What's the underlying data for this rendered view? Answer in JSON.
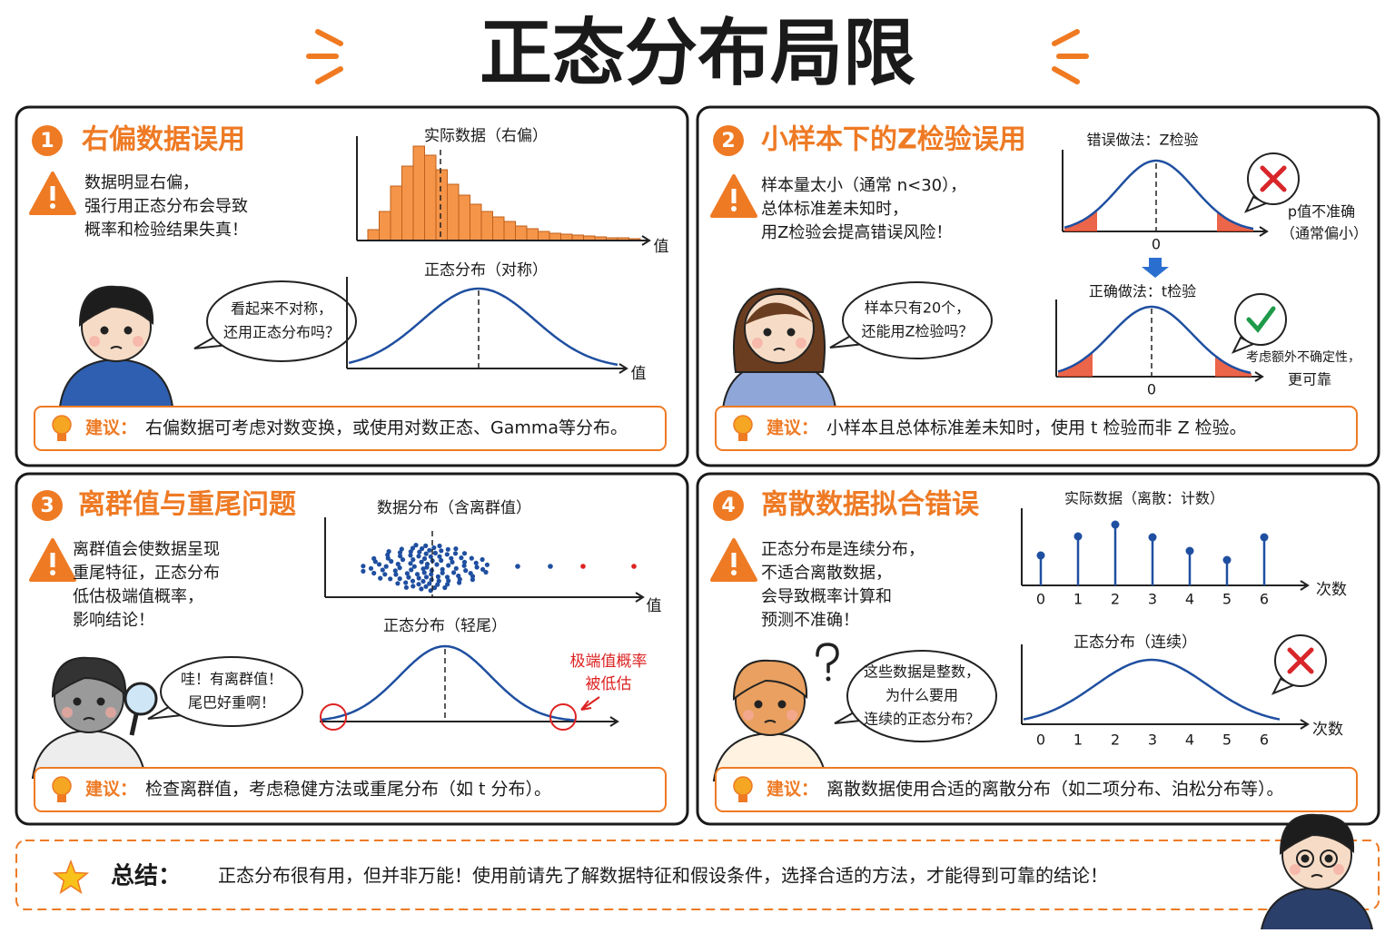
{
  "title": "正态分布局限",
  "panels": [
    {
      "number": "1",
      "heading": "右偏数据误用",
      "warning": [
        "数据明显右偏，",
        "强行用正态分布会导致",
        "概率和检验结果失真！"
      ],
      "bubble": [
        "看起来不对称，",
        "还用正态分布吗？"
      ],
      "charts": [
        {
          "title": "实际数据（右偏）",
          "x_label": "值"
        },
        {
          "title": "正态分布（对称）",
          "x_label": "值"
        }
      ],
      "tip_label": "建议：",
      "tip": "右偏数据可考虑对数变换，或使用对数正态、Gamma等分布。"
    },
    {
      "number": "2",
      "heading": "小样本下的Z检验误用",
      "warning": [
        "样本量太小（通常 n<30），",
        "总体标准差未知时，",
        "用Z检验会提高错误风险！"
      ],
      "bubble": [
        "样本只有20个，",
        "还能用Z检验吗？"
      ],
      "charts": [
        {
          "title": "错误做法：Z检验",
          "tick": "0",
          "note": [
            "p值不准确",
            "（通常偏小）"
          ]
        },
        {
          "title": "正确做法：t检验",
          "tick": "0",
          "note": [
            "考虑额外不确定性，",
            "更可靠"
          ]
        }
      ],
      "tip_label": "建议：",
      "tip": "小样本且总体标准差未知时，使用 t 检验而非 Z 检验。"
    },
    {
      "number": "3",
      "heading": "离群值与重尾问题",
      "warning": [
        "离群值会使数据呈现",
        "重尾特征，正态分布",
        "低估极端值概率，",
        "影响结论！"
      ],
      "bubble": [
        "哇！有离群值！",
        "尾巴好重啊！"
      ],
      "charts": [
        {
          "title": "数据分布（含离群值）",
          "x_label": "值"
        },
        {
          "title": "正态分布（轻尾）",
          "note": [
            "极端值概率",
            "被低估"
          ]
        }
      ],
      "tip_label": "建议：",
      "tip": "检查离群值，考虑稳健方法或重尾分布（如 t 分布）。"
    },
    {
      "number": "4",
      "heading": "离散数据拟合错误",
      "warning": [
        "正态分布是连续分布，",
        "不适合离散数据，",
        "会导致概率计算和",
        "预测不准确！"
      ],
      "bubble": [
        "这些数据是整数，",
        "为什么要用",
        "连续的正态分布？"
      ],
      "charts": [
        {
          "title": "实际数据（离散：计数）",
          "ticks": [
            "0",
            "1",
            "2",
            "3",
            "4",
            "5",
            "6"
          ],
          "x_label": "次数"
        },
        {
          "title": "正态分布（连续）",
          "ticks": [
            "0",
            "1",
            "2",
            "3",
            "4",
            "5",
            "6"
          ],
          "x_label": "次数"
        }
      ],
      "tip_label": "建议：",
      "tip": "离散数据使用合适的离散分布（如二项分布、泊松分布等）。"
    }
  ],
  "summary": {
    "label": "总结：",
    "text": "正态分布很有用，但并非万能！使用前请先了解数据特征和假设条件，选择合适的方法，才能得到可靠的结论！"
  }
}
